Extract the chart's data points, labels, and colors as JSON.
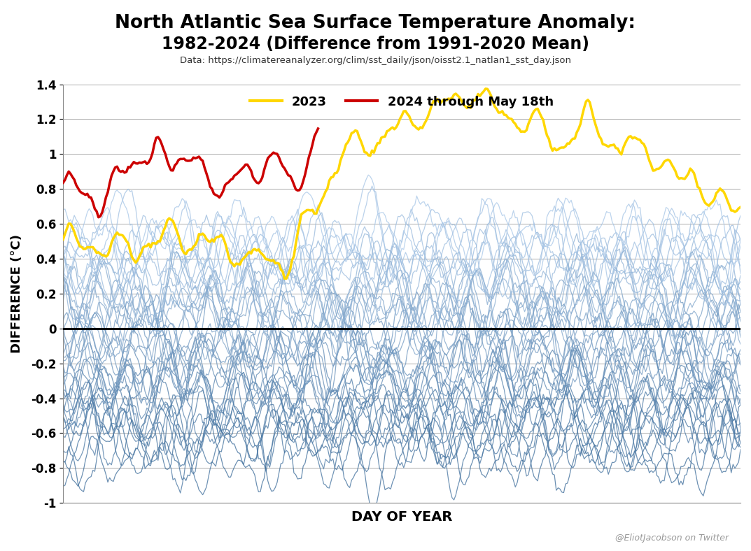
{
  "title_line1": "North Atlantic Sea Surface Temperature Anomaly:",
  "title_line2": "1982-2024 (Difference from 1991-2020 Mean)",
  "subtitle": "Data: https://climatereanalyzer.org/clim/sst_daily/json/oisst2.1_natlan1_sst_day.json",
  "xlabel": "DAY OF YEAR",
  "ylabel": "DIFFERENCE (°C)",
  "legend_2023": "2023",
  "legend_2024": "2024 through May 18th",
  "color_2023": "#FFD700",
  "color_2024": "#CC0000",
  "watermark": "@EliotJacobson on Twitter",
  "ylim": [
    -1.0,
    1.4
  ],
  "xlim": [
    1,
    365
  ],
  "yticks": [
    -1.0,
    -0.8,
    -0.6,
    -0.4,
    -0.2,
    0.0,
    0.2,
    0.4,
    0.6,
    0.8,
    1.0,
    1.2,
    1.4
  ],
  "num_background_years": 41,
  "days_in_year": 365
}
